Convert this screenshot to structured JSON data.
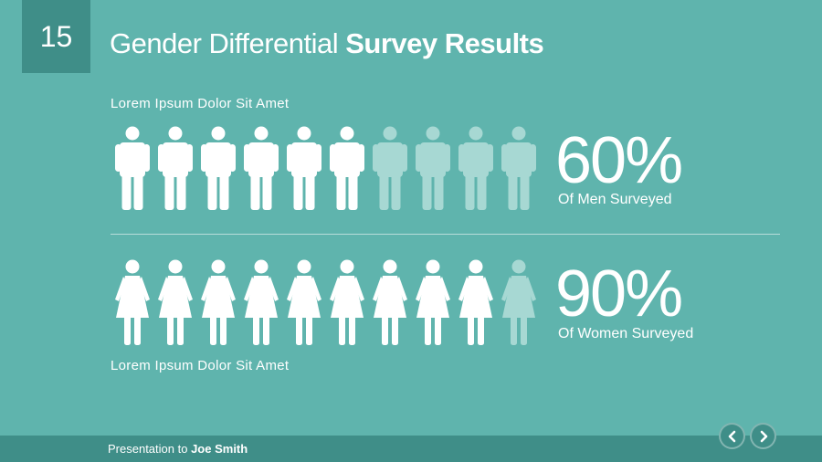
{
  "slide": {
    "number": "15",
    "title_light": "Gender Differential",
    "title_bold": "Survey Results"
  },
  "men": {
    "caption": "Lorem Ipsum Dolor Sit Amet",
    "percent_text": "60%",
    "label": "Of Men Surveyed",
    "filled": 6,
    "total": 10
  },
  "women": {
    "caption": "Lorem Ipsum Dolor Sit Amet",
    "percent_text": "90%",
    "label": "Of Women Surveyed",
    "filled": 9,
    "total": 10
  },
  "footer": {
    "prefix": "Presentation to",
    "name": "Joe Smith"
  },
  "nav": {
    "prev_icon": "chevron-left-icon",
    "next_icon": "chevron-right-icon"
  },
  "colors": {
    "background": "#5fb4ad",
    "accent": "#3f8e88",
    "icon_filled": "#ffffff",
    "icon_dim": "#a7d8d3"
  }
}
